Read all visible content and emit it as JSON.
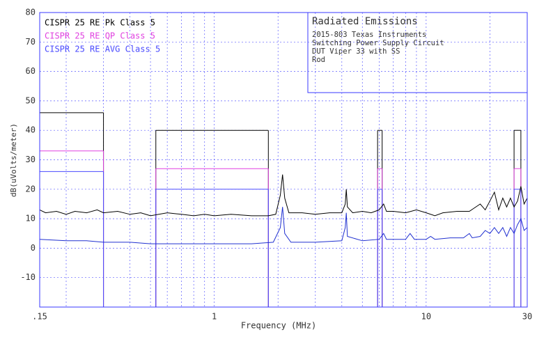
{
  "chart_data": {
    "type": "line",
    "title": "Radiated Emissions",
    "notes": [
      "2015-803 Texas Instruments",
      "Switching Power Supply Circuit",
      "DUT Viper 33 with SS",
      "Rod"
    ],
    "xlabel": "Frequency (MHz)",
    "ylabel": "dB(uVolts/meter)",
    "xscale": "log",
    "xlim": [
      0.15,
      30
    ],
    "ylim": [
      -20,
      80
    ],
    "xticks": [
      {
        "value": 0.15,
        "label": ".15"
      },
      1,
      10,
      30
    ],
    "xgrid": [
      0.2,
      0.3,
      0.4,
      0.5,
      0.6,
      0.7,
      0.8,
      0.9,
      2,
      3,
      4,
      5,
      6,
      7,
      8,
      9,
      20
    ],
    "yticks": [
      -10,
      0,
      10,
      20,
      30,
      40,
      50,
      60,
      70,
      80
    ],
    "grid": true,
    "limits": [
      {
        "name": "CISPR 25 RE Pk Class 5",
        "color": "#000000",
        "segments": [
          [
            0.15,
            0.3,
            46
          ],
          [
            0.53,
            1.8,
            40
          ],
          [
            5.9,
            6.2,
            40
          ],
          [
            26,
            28,
            40
          ]
        ]
      },
      {
        "name": "CISPR 25 RE QP Class 5",
        "color": "#e040e0",
        "segments": [
          [
            0.15,
            0.3,
            33
          ],
          [
            0.53,
            1.8,
            27
          ],
          [
            5.9,
            6.2,
            27
          ],
          [
            26,
            28,
            27
          ]
        ]
      },
      {
        "name": "CISPR 25 RE AVG Class 5",
        "color": "#4a4aff",
        "segments": [
          [
            0.15,
            0.3,
            26
          ],
          [
            0.53,
            1.8,
            20
          ],
          [
            5.9,
            6.2,
            20
          ],
          [
            26,
            28,
            20
          ]
        ]
      }
    ],
    "series": [
      {
        "color": "#000000",
        "x": [
          0.15,
          0.16,
          0.18,
          0.2,
          0.22,
          0.25,
          0.28,
          0.3,
          0.35,
          0.4,
          0.45,
          0.5,
          0.6,
          0.7,
          0.8,
          0.9,
          1,
          1.2,
          1.5,
          1.8,
          1.95,
          2.05,
          2.1,
          2.15,
          2.25,
          2.6,
          3,
          3.5,
          4,
          4.15,
          4.2,
          4.25,
          4.5,
          5,
          5.5,
          6,
          6.3,
          6.5,
          7,
          8,
          9,
          10,
          11,
          12,
          14,
          16,
          18,
          19,
          20,
          21,
          22,
          23,
          24,
          25,
          26,
          27,
          28,
          29,
          30
        ],
        "values": [
          13,
          12,
          12.5,
          11.5,
          12.5,
          12,
          13,
          12,
          12.5,
          11.5,
          12,
          11,
          12,
          11.5,
          11,
          11.5,
          11,
          11.5,
          11,
          11,
          11.5,
          18,
          25,
          17,
          12,
          12,
          11.5,
          12,
          12,
          15,
          20,
          14,
          12,
          12.5,
          12,
          13,
          15,
          12.5,
          12.5,
          12,
          13,
          12,
          11,
          12,
          12.5,
          12.5,
          15,
          13,
          16,
          19,
          13,
          17,
          14,
          17,
          14,
          16,
          21,
          15,
          17
        ]
      },
      {
        "color": "#2030d0",
        "x": [
          0.15,
          0.2,
          0.25,
          0.3,
          0.4,
          0.5,
          0.7,
          1,
          1.5,
          1.9,
          2.05,
          2.1,
          2.15,
          2.3,
          3,
          4,
          4.15,
          4.2,
          4.25,
          5,
          6,
          6.3,
          6.5,
          8,
          8.4,
          8.8,
          10,
          10.5,
          11,
          13,
          15,
          16,
          16.5,
          18,
          19,
          20,
          21,
          22,
          23,
          24,
          25,
          26,
          27,
          28,
          29,
          30
        ],
        "values": [
          3,
          2.5,
          2.5,
          2,
          2,
          1.5,
          1.5,
          1.5,
          1.5,
          2,
          7,
          14,
          5,
          2,
          2,
          2.5,
          7,
          12,
          4,
          2.5,
          3,
          5,
          3,
          3,
          5,
          3,
          3,
          4,
          3,
          3.5,
          3.5,
          5,
          3.5,
          4,
          6,
          5,
          7,
          5,
          7,
          4,
          7,
          5,
          8,
          10,
          6,
          7
        ]
      }
    ]
  }
}
